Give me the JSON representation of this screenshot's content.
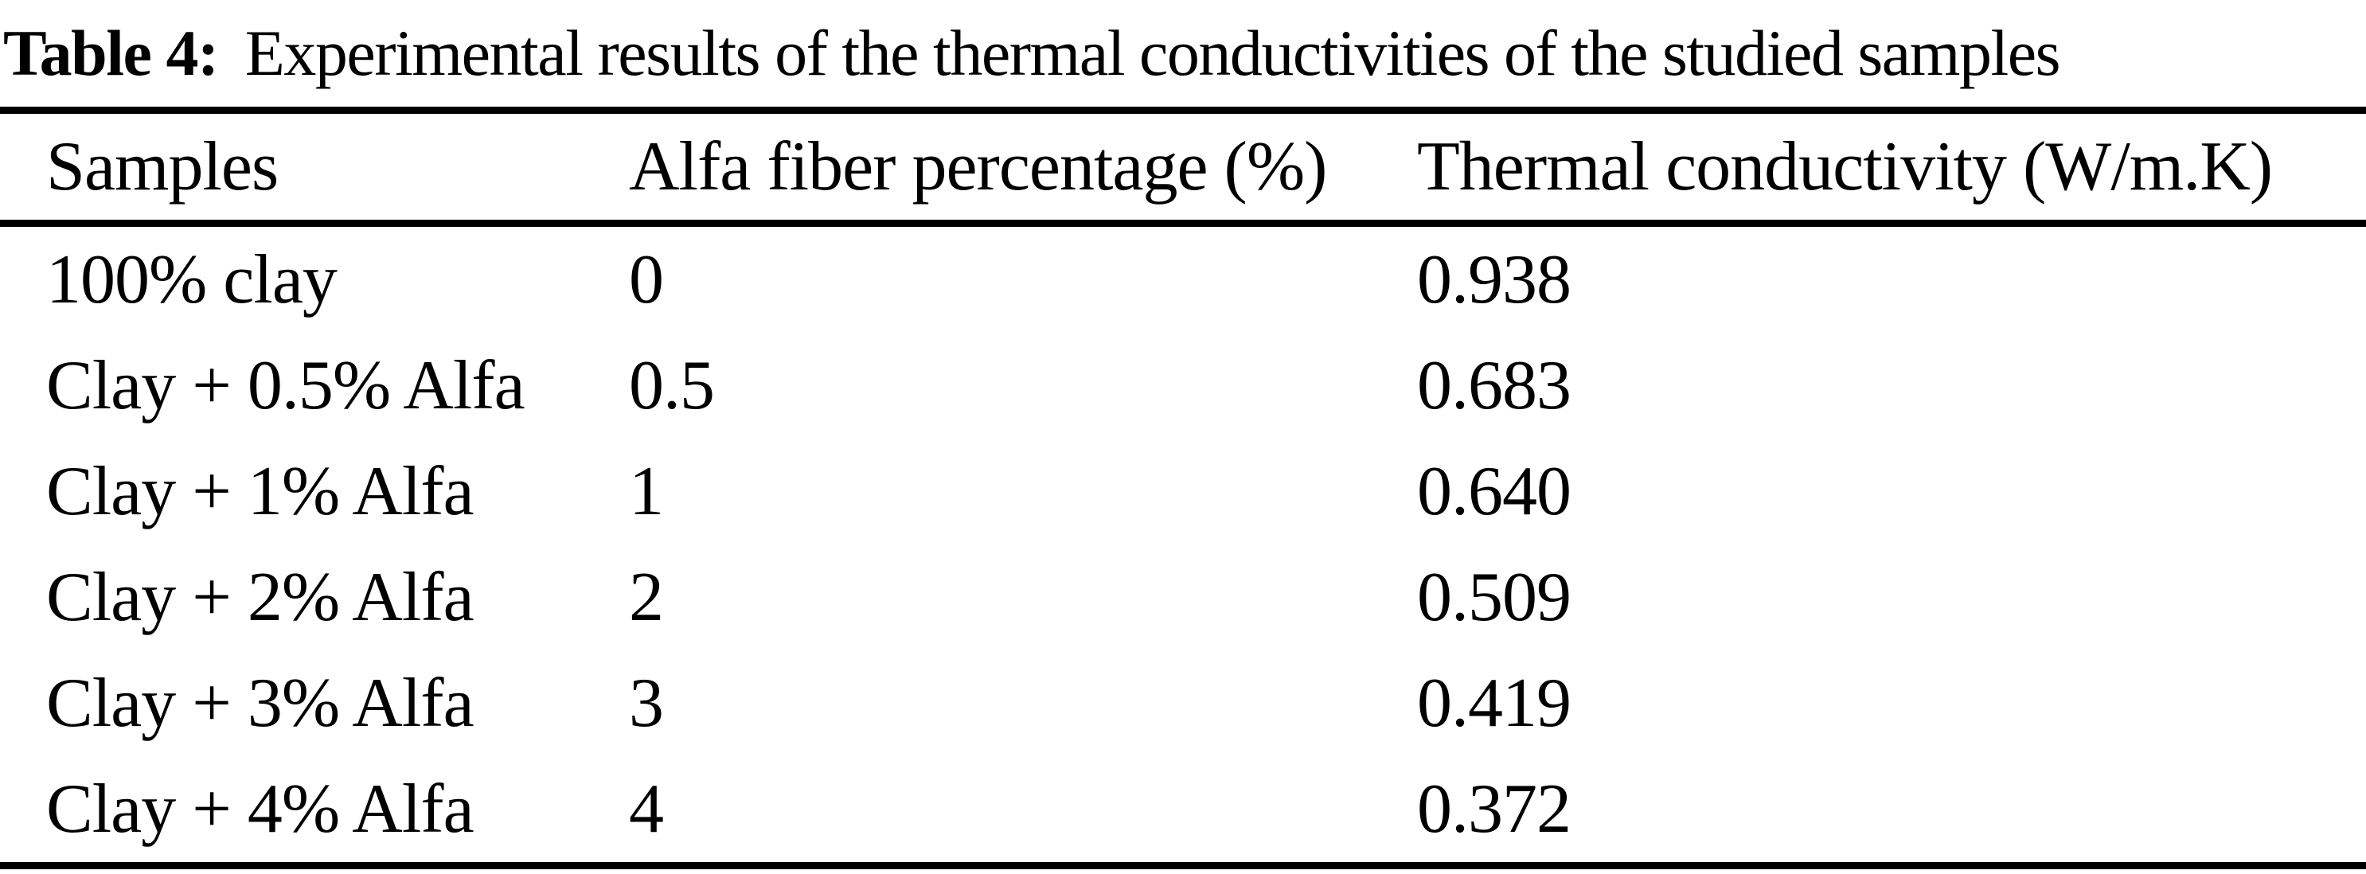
{
  "caption": {
    "label": "Table 4:",
    "text": "Experimental results of the thermal conductivities of the studied samples"
  },
  "table": {
    "columns": [
      "Samples",
      "Alfa fiber percentage (%)",
      "Thermal conductivity (W/m.K)"
    ],
    "rows": [
      {
        "sample": "100% clay",
        "alfa_fiber_percentage": "0",
        "thermal_conductivity": "0.938"
      },
      {
        "sample": "Clay + 0.5% Alfa",
        "alfa_fiber_percentage": "0.5",
        "thermal_conductivity": "0.683"
      },
      {
        "sample": "Clay + 1% Alfa",
        "alfa_fiber_percentage": "1",
        "thermal_conductivity": "0.640"
      },
      {
        "sample": "Clay + 2% Alfa",
        "alfa_fiber_percentage": "2",
        "thermal_conductivity": "0.509"
      },
      {
        "sample": "Clay + 3% Alfa",
        "alfa_fiber_percentage": "3",
        "thermal_conductivity": "0.419"
      },
      {
        "sample": "Clay + 4% Alfa",
        "alfa_fiber_percentage": "4",
        "thermal_conductivity": "0.372"
      }
    ]
  },
  "colors": {
    "text": "#000000",
    "background": "#ffffff",
    "rule": "#000000"
  },
  "chart_data": {
    "type": "table",
    "title": "Table 4: Experimental results of the thermal conductivities of the studied samples",
    "columns": [
      "Samples",
      "Alfa fiber percentage (%)",
      "Thermal conductivity (W/m.K)"
    ],
    "categories": [
      "100% clay",
      "Clay + 0.5% Alfa",
      "Clay + 1% Alfa",
      "Clay + 2% Alfa",
      "Clay + 3% Alfa",
      "Clay + 4% Alfa"
    ],
    "series": [
      {
        "name": "Alfa fiber percentage (%)",
        "values": [
          0,
          0.5,
          1,
          2,
          3,
          4
        ]
      },
      {
        "name": "Thermal conductivity (W/m.K)",
        "values": [
          0.938,
          0.683,
          0.64,
          0.509,
          0.419,
          0.372
        ]
      }
    ]
  }
}
